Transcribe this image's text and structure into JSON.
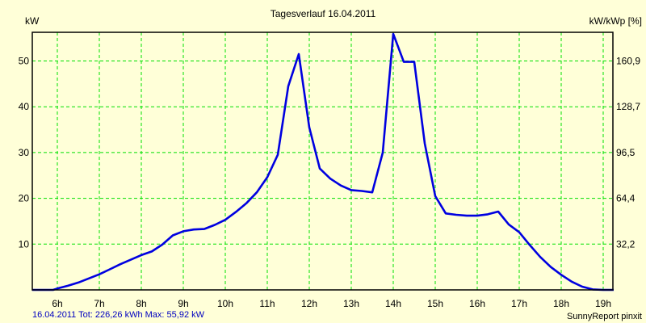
{
  "header": {
    "title": "Tagesverlauf 16.04.2011",
    "ylabel_left": "kW",
    "ylabel_right": "kW/kWp [%]"
  },
  "footer": {
    "summary": "16.04.2011 Tot: 226,26 kWh Max: 55,92 kW",
    "credit": "SunnyReport pinxit"
  },
  "colors": {
    "background": "#FFFFD8",
    "grid": "#00E000",
    "line": "#0000E0",
    "axis": "#000000",
    "summary_text": "#0000C0"
  },
  "chart_data": {
    "type": "line",
    "title": "Tagesverlauf 16.04.2011",
    "xlabel": "",
    "ylabel": "kW",
    "ylabel_secondary": "kW/kWp [%]",
    "x_ticks": [
      "6h",
      "7h",
      "8h",
      "9h",
      "10h",
      "11h",
      "12h",
      "13h",
      "14h",
      "15h",
      "16h",
      "17h",
      "18h",
      "19h"
    ],
    "y_ticks": [
      10,
      20,
      30,
      40,
      50
    ],
    "y2_ticks": [
      "32,2",
      "64,4",
      "96,5",
      "128,7",
      "160,9"
    ],
    "xlim": [
      5.4,
      19.25
    ],
    "ylim": [
      0,
      56.3
    ],
    "grid": true,
    "legend": null,
    "series": [
      {
        "name": "kW",
        "x": [
          5.4,
          5.9,
          6.0,
          6.25,
          6.5,
          6.75,
          7.0,
          7.25,
          7.5,
          7.75,
          8.0,
          8.25,
          8.5,
          8.75,
          9.0,
          9.25,
          9.5,
          9.75,
          10.0,
          10.25,
          10.5,
          10.75,
          11.0,
          11.25,
          11.5,
          11.75,
          12.0,
          12.25,
          12.5,
          12.75,
          13.0,
          13.25,
          13.5,
          13.75,
          14.0,
          14.25,
          14.5,
          14.75,
          15.0,
          15.25,
          15.5,
          15.75,
          16.0,
          16.25,
          16.5,
          16.75,
          17.0,
          17.25,
          17.5,
          17.75,
          18.0,
          18.25,
          18.5,
          18.75,
          19.0,
          19.25
        ],
        "y": [
          0,
          0,
          0.3,
          0.9,
          1.6,
          2.5,
          3.4,
          4.5,
          5.6,
          6.6,
          7.6,
          8.4,
          9.9,
          11.9,
          12.8,
          13.2,
          13.3,
          14.2,
          15.3,
          17.0,
          18.9,
          21.3,
          24.6,
          29.5,
          44.5,
          51.5,
          35.5,
          26.5,
          24.3,
          22.8,
          21.8,
          21.6,
          21.3,
          30.0,
          55.9,
          49.8,
          49.8,
          32.0,
          20.5,
          16.7,
          16.4,
          16.2,
          16.2,
          16.5,
          17.1,
          14.3,
          12.6,
          9.8,
          7.2,
          5.0,
          3.3,
          1.8,
          0.7,
          0.1,
          0,
          0
        ]
      }
    ],
    "annotations": [
      "16.04.2011 Tot: 226,26 kWh Max: 55,92 kW",
      "SunnyReport pinxit"
    ]
  }
}
